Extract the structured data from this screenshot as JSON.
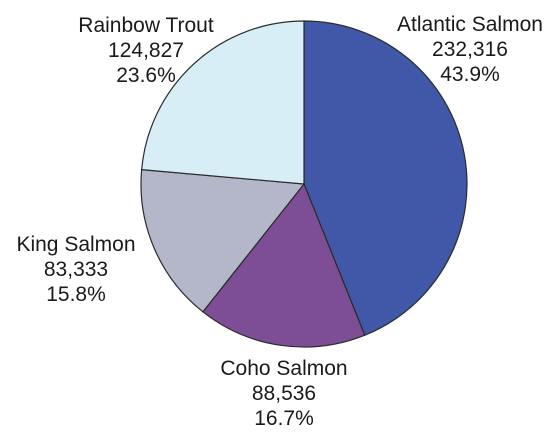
{
  "chart_data": {
    "type": "pie",
    "title": "",
    "slices": [
      {
        "label": "Atlantic Salmon",
        "value": 232316,
        "value_label": "232,316",
        "percent_label": "43.9%",
        "color": "#4158a8"
      },
      {
        "label": "Coho Salmon",
        "value": 88536,
        "value_label": "88,536",
        "percent_label": "16.7%",
        "color": "#7d4d95"
      },
      {
        "label": "King Salmon",
        "value": 83333,
        "value_label": "83,333",
        "percent_label": "15.8%",
        "color": "#b4b6c9"
      },
      {
        "label": "Rainbow Trout",
        "value": 124827,
        "value_label": "124,827",
        "percent_label": "23.6%",
        "color": "#d8eef6"
      }
    ],
    "start_angle_deg": 0,
    "direction": "clockwise",
    "legend": "none (direct labels)"
  }
}
